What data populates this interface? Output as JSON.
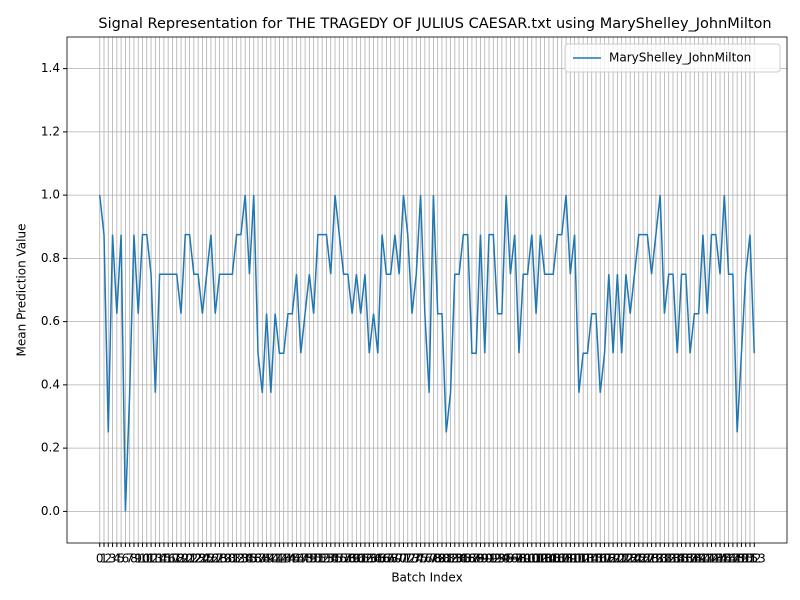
{
  "chart_data": {
    "type": "line",
    "title": "Signal Representation for THE TRAGEDY OF JULIUS CAESAR.txt using MaryShelley_JohnMilton",
    "xlabel": "Batch Index",
    "ylabel": "Mean Prediction Value",
    "x": [
      0,
      1,
      2,
      3,
      4,
      5,
      6,
      7,
      8,
      9,
      10,
      11,
      12,
      13,
      14,
      15,
      16,
      17,
      18,
      19,
      20,
      21,
      22,
      23,
      24,
      25,
      26,
      27,
      28,
      29,
      30,
      31,
      32,
      33,
      34,
      35,
      36,
      37,
      38,
      39,
      40,
      41,
      42,
      43,
      44,
      45,
      46,
      47,
      48,
      49,
      50,
      51,
      52,
      53,
      54,
      55,
      56,
      57,
      58,
      59,
      60,
      61,
      62,
      63,
      64,
      65,
      66,
      67,
      68,
      69,
      70,
      71,
      72,
      73,
      74,
      75,
      76,
      77,
      78,
      79,
      80,
      81,
      82,
      83,
      84,
      85,
      86,
      87,
      88,
      89,
      90,
      91,
      92,
      93,
      94,
      95,
      96,
      97,
      98,
      99,
      100,
      101,
      102,
      103,
      104,
      105,
      106,
      107,
      108,
      109,
      110,
      111,
      112,
      113,
      114,
      115,
      116,
      117,
      118,
      119,
      120,
      121,
      122,
      123,
      124,
      125,
      126,
      127,
      128,
      129,
      130,
      131,
      132,
      133,
      134,
      135,
      136,
      137,
      138,
      139,
      140,
      141,
      142,
      143,
      144,
      145,
      146,
      147,
      148,
      149,
      150,
      151,
      152,
      153
    ],
    "series": [
      {
        "name": "MaryShelley_JohnMilton",
        "color": "#1f77b4",
        "values": [
          1.0,
          0.875,
          0.25,
          0.875,
          0.625,
          0.875,
          0.0,
          0.375,
          0.875,
          0.625,
          0.875,
          0.875,
          0.75,
          0.375,
          0.75,
          0.75,
          0.75,
          0.75,
          0.75,
          0.625,
          0.875,
          0.875,
          0.75,
          0.75,
          0.625,
          0.75,
          0.875,
          0.625,
          0.75,
          0.75,
          0.75,
          0.75,
          0.875,
          0.875,
          1.0,
          0.75,
          1.0,
          0.5,
          0.375,
          0.625,
          0.375,
          0.625,
          0.5,
          0.5,
          0.625,
          0.625,
          0.75,
          0.5,
          0.625,
          0.75,
          0.625,
          0.875,
          0.875,
          0.875,
          0.75,
          1.0,
          0.875,
          0.75,
          0.75,
          0.625,
          0.75,
          0.625,
          0.75,
          0.5,
          0.625,
          0.5,
          0.875,
          0.75,
          0.75,
          0.875,
          0.75,
          1.0,
          0.875,
          0.625,
          0.75,
          1.0,
          0.625,
          0.375,
          1.0,
          0.625,
          0.625,
          0.25,
          0.375,
          0.75,
          0.75,
          0.875,
          0.875,
          0.5,
          0.5,
          0.875,
          0.5,
          0.875,
          0.875,
          0.625,
          0.625,
          1.0,
          0.75,
          0.875,
          0.5,
          0.75,
          0.75,
          0.875,
          0.625,
          0.875,
          0.75,
          0.75,
          0.75,
          0.875,
          0.875,
          1.0,
          0.75,
          0.875,
          0.375,
          0.5,
          0.5,
          0.625,
          0.625,
          0.375,
          0.5,
          0.75,
          0.5,
          0.75,
          0.5,
          0.75,
          0.625,
          0.75,
          0.875,
          0.875,
          0.875,
          0.75,
          0.875,
          1.0,
          0.625,
          0.75,
          0.75,
          0.5,
          0.75,
          0.75,
          0.5,
          0.625,
          0.625,
          0.875,
          0.625,
          0.875,
          0.875,
          0.75,
          1.0,
          0.75,
          0.75,
          0.25,
          0.5,
          0.75,
          0.875,
          0.5
        ]
      }
    ],
    "xlim": [
      -7.65,
      160.65
    ],
    "xticks": [
      0,
      1,
      2,
      3,
      4,
      5,
      6,
      7,
      8,
      9,
      10,
      11,
      12,
      13,
      14,
      15,
      16,
      17,
      18,
      19,
      20,
      21,
      22,
      23,
      24,
      25,
      26,
      27,
      28,
      29,
      30,
      31,
      32,
      33,
      34,
      35,
      36,
      37,
      38,
      39,
      40,
      41,
      42,
      43,
      44,
      45,
      46,
      47,
      48,
      49,
      50,
      51,
      52,
      53,
      54,
      55,
      56,
      57,
      58,
      59,
      60,
      61,
      62,
      63,
      64,
      65,
      66,
      67,
      68,
      69,
      70,
      71,
      72,
      73,
      74,
      75,
      76,
      77,
      78,
      79,
      80,
      81,
      82,
      83,
      84,
      85,
      86,
      87,
      88,
      89,
      90,
      91,
      92,
      93,
      94,
      95,
      96,
      97,
      98,
      99,
      100,
      101,
      102,
      103,
      104,
      105,
      106,
      107,
      108,
      109,
      110,
      111,
      112,
      113,
      114,
      115,
      116,
      117,
      118,
      119,
      120,
      121,
      122,
      123,
      124,
      125,
      126,
      127,
      128,
      129,
      130,
      131,
      132,
      133,
      134,
      135,
      136,
      137,
      138,
      139,
      140,
      141,
      142,
      143,
      144,
      145,
      146,
      147,
      148,
      149,
      150,
      151,
      152,
      153
    ],
    "ylim": [
      -0.1,
      1.5
    ],
    "yticks": [
      {
        "value": 0,
        "label": "0.0"
      },
      0.2,
      0.4,
      0.6,
      0.8,
      {
        "value": 1,
        "label": "1.0"
      },
      1.2,
      1.4
    ],
    "grid": true,
    "legend": "upper right"
  }
}
